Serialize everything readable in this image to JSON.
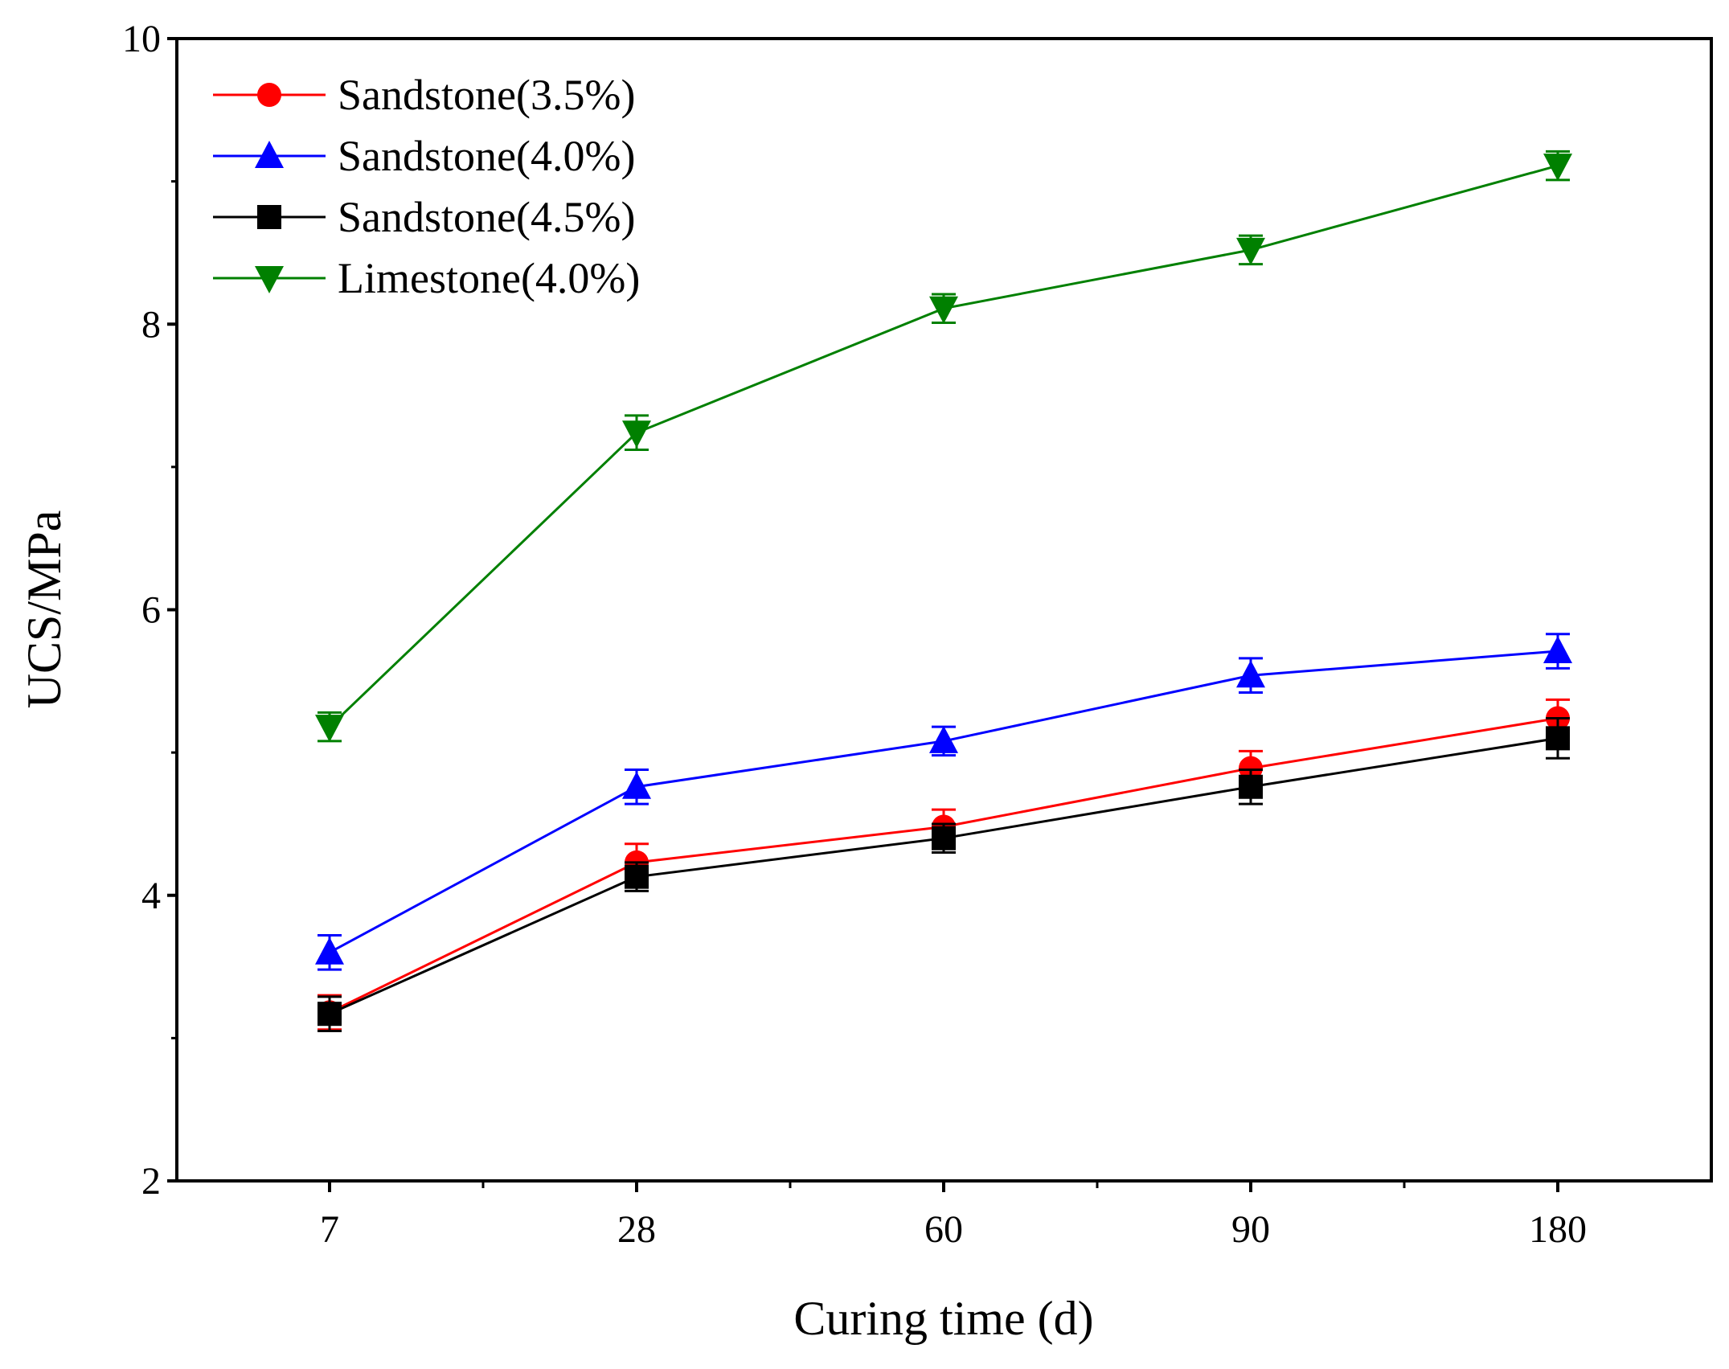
{
  "chart_data": {
    "type": "line",
    "title": "",
    "xlabel": "Curing time (d)",
    "ylabel": "UCS/MPa",
    "categories": [
      "7",
      "28",
      "60",
      "90",
      "180"
    ],
    "ylim": [
      2,
      10
    ],
    "yticks": [
      2,
      4,
      6,
      8,
      10
    ],
    "grid": false,
    "legend_position": "top-left",
    "series": [
      {
        "name": "Sandstone(3.5%)",
        "color": "#ff0000",
        "marker": "circle",
        "values": [
          3.18,
          4.23,
          4.48,
          4.89,
          5.24
        ],
        "errors": [
          0.12,
          0.13,
          0.12,
          0.12,
          0.13
        ]
      },
      {
        "name": "Sandstone(4.0%)",
        "color": "#0000ff",
        "marker": "triangle-up",
        "values": [
          3.6,
          4.76,
          5.08,
          5.54,
          5.71
        ],
        "errors": [
          0.12,
          0.12,
          0.1,
          0.12,
          0.12
        ]
      },
      {
        "name": "Sandstone(4.5%)",
        "color": "#000000",
        "marker": "square",
        "values": [
          3.17,
          4.13,
          4.4,
          4.76,
          5.1
        ],
        "errors": [
          0.12,
          0.1,
          0.1,
          0.12,
          0.14
        ]
      },
      {
        "name": "Limestone(4.0%)",
        "color": "#008000",
        "marker": "triangle-down",
        "values": [
          5.18,
          7.24,
          8.11,
          8.52,
          9.11
        ],
        "errors": [
          0.1,
          0.12,
          0.1,
          0.1,
          0.1
        ]
      }
    ]
  }
}
